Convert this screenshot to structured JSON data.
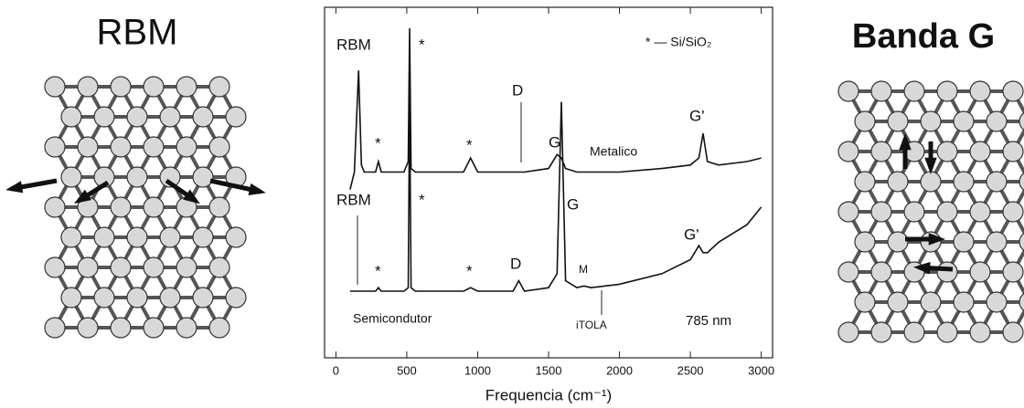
{
  "left_title": "RBM",
  "right_title": "Banda G",
  "chart_data": {
    "type": "line",
    "xlabel": "Frequencia (cm⁻¹)",
    "xlim": [
      -80,
      3080
    ],
    "xticks": [
      0,
      500,
      1000,
      1500,
      2000,
      2500,
      3000
    ],
    "ylim": [
      0,
      100
    ],
    "x": [
      100,
      130,
      160,
      180,
      200,
      280,
      300,
      320,
      480,
      510,
      520,
      530,
      560,
      900,
      950,
      1000,
      1250,
      1290,
      1330,
      1500,
      1560,
      1590,
      1620,
      1700,
      1750,
      1800,
      2000,
      2300,
      2500,
      2560,
      2590,
      2620,
      2700,
      2900,
      3000
    ],
    "series": [
      {
        "name": "Metalico",
        "color": "#111111",
        "values": [
          48,
          53,
          82,
          55,
          53,
          53,
          56,
          53,
          53,
          56,
          94,
          54,
          53,
          53,
          57,
          53,
          53,
          53,
          53,
          54,
          58,
          57,
          54,
          53,
          53,
          53,
          53,
          54,
          55,
          57,
          64,
          56,
          55,
          56,
          57
        ]
      },
      {
        "name": "Semicondutor",
        "color": "#111111",
        "values": [
          19,
          19,
          19,
          19,
          19,
          19,
          20,
          19,
          19,
          20,
          73,
          20,
          19,
          19,
          20,
          19,
          19,
          22,
          19,
          20,
          24,
          73,
          22,
          20,
          20.5,
          20,
          21,
          24,
          28,
          32,
          30,
          30,
          33,
          38,
          43
        ]
      }
    ],
    "annotations": [
      "RBM",
      "*",
      "*",
      "*",
      "D",
      "G",
      "G'",
      "* — Si/SiO₂",
      "RBM",
      "*",
      "*",
      "*",
      "D",
      "G",
      "M",
      "G'",
      "iTOLA",
      "785 nm"
    ]
  }
}
